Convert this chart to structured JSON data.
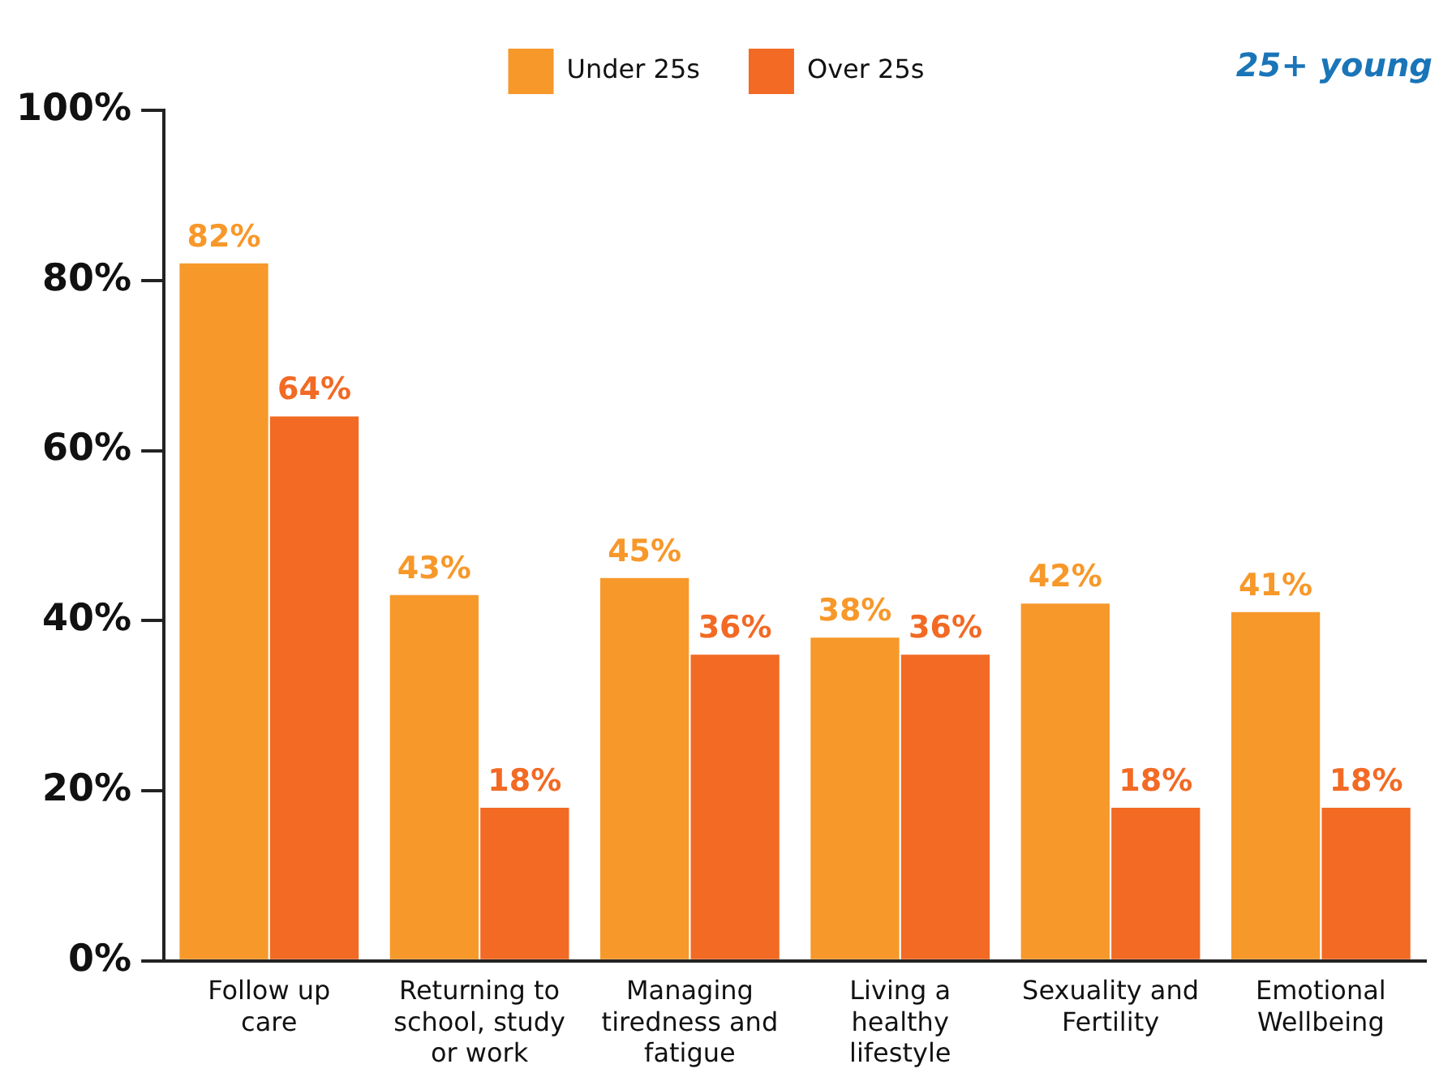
{
  "chart_data": {
    "type": "bar",
    "categories": [
      "Follow up care",
      "Returning to school, study or work",
      "Managing tiredness and fatigue",
      "Living a healthy lifestyle",
      "Sexuality and Fertility",
      "Emotional Wellbeing"
    ],
    "series": [
      {
        "name": "Under 25s",
        "color": "#f7982a",
        "values": [
          82,
          43,
          45,
          38,
          42,
          41
        ],
        "value_labels": [
          "82%",
          "43%",
          "45%",
          "38%",
          "42%",
          "41%"
        ]
      },
      {
        "name": "Over 25s",
        "color": "#f26a24",
        "values": [
          64,
          18,
          36,
          36,
          18,
          18
        ],
        "value_labels": [
          "64%",
          "18%",
          "36%",
          "36%",
          "18%",
          "18%"
        ]
      }
    ],
    "ylim": [
      0,
      100
    ],
    "yticks": [
      {
        "value": 0,
        "label": "0%"
      },
      {
        "value": 20,
        "label": "20%"
      },
      {
        "value": 40,
        "label": "40%"
      },
      {
        "value": 60,
        "label": "60%"
      },
      {
        "value": 80,
        "label": "80%"
      },
      {
        "value": 100,
        "label": "100%"
      }
    ],
    "legend": "top",
    "grid": false,
    "annotations": [
      "25+ young"
    ]
  }
}
